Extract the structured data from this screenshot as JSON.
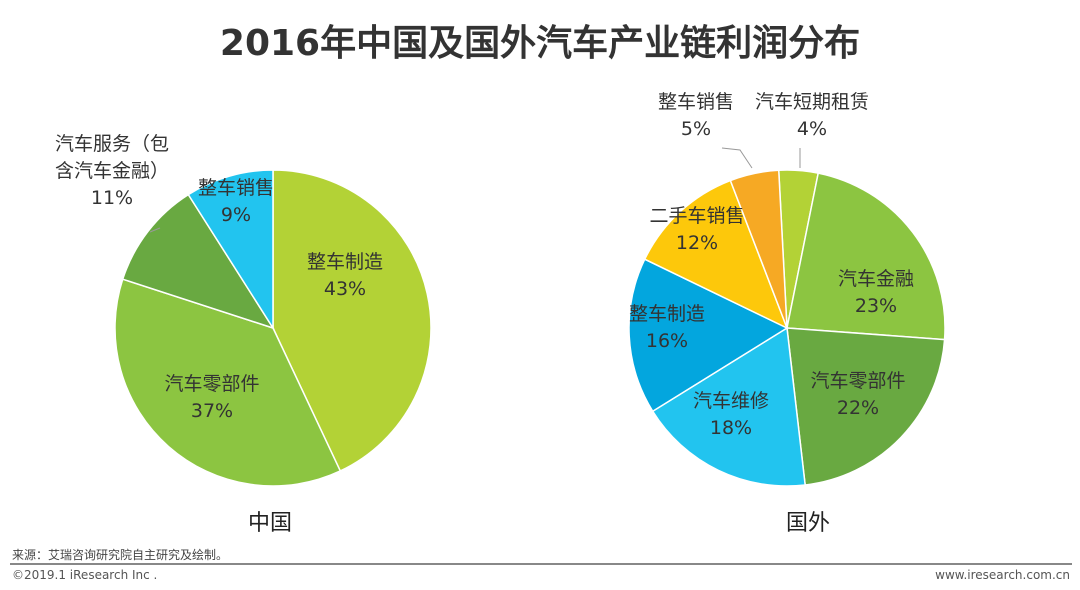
{
  "title": "2016年中国及国外汽车产业链利润分布",
  "footer": {
    "source": "来源：艾瑞咨询研究院自主研究及绘制。",
    "copyright": "©2019.1 iResearch Inc .",
    "website": "www.iresearch.com.cn"
  },
  "chart_data": [
    {
      "type": "pie",
      "xlabel": "中国",
      "start": "top",
      "direction": "clockwise",
      "slices": [
        {
          "label": "整车制造",
          "value": 43,
          "color": "#b3d236"
        },
        {
          "label": "汽车零部件",
          "value": 37,
          "color": "#8cc541"
        },
        {
          "label": "汽车服务（包含汽车金融）",
          "value": 11,
          "color": "#69a941"
        },
        {
          "label": "整车销售",
          "value": 9,
          "color": "#22c4ef"
        }
      ]
    },
    {
      "type": "pie",
      "xlabel": "国外",
      "start": "top",
      "direction": "clockwise",
      "slices": [
        {
          "label": "汽车短期租赁",
          "value": 4,
          "color": "#b3d236"
        },
        {
          "label": "汽车金融",
          "value": 23,
          "color": "#8cc541"
        },
        {
          "label": "汽车零部件",
          "value": 22,
          "color": "#69a941"
        },
        {
          "label": "汽车维修",
          "value": 18,
          "color": "#22c4ef"
        },
        {
          "label": "整车制造",
          "value": 16,
          "color": "#03a6de"
        },
        {
          "label": "二手车销售",
          "value": 12,
          "color": "#fdc80b"
        },
        {
          "label": "整车销售",
          "value": 5,
          "color": "#f6a924"
        }
      ]
    }
  ]
}
